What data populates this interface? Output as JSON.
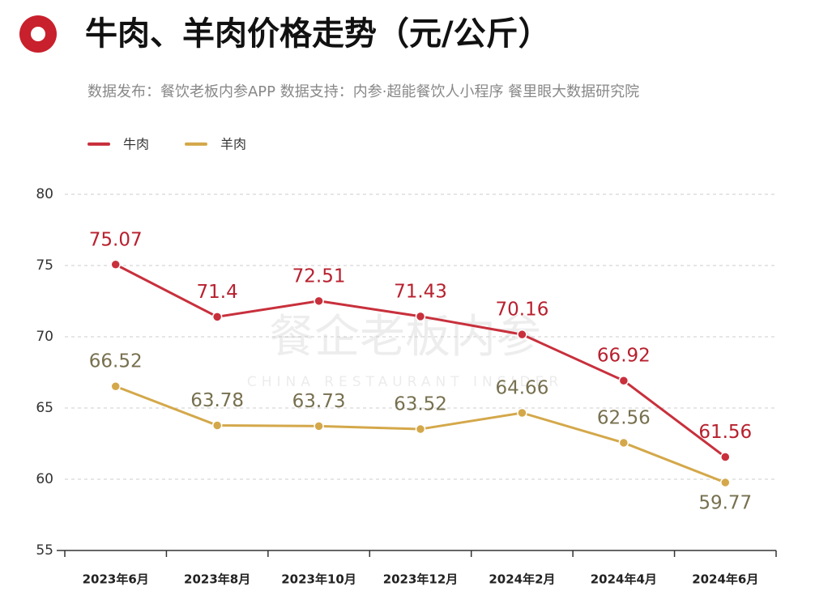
{
  "chart_data": {
    "type": "line",
    "title": "牛肉、羊肉价格走势（元/公斤）",
    "subtitle": "数据发布：餐饮老板内参APP  数据支持：内参·超能餐饮人小程序   餐里眼大数据研究院",
    "watermark": "餐企老板内参",
    "watermark_subtitle": "CHINA RESTAURANT INSIDER",
    "categories": [
      "2023年6月",
      "2023年8月",
      "2023年10月",
      "2023年12月",
      "2024年2月",
      "2024年4月",
      "2024年6月"
    ],
    "series": [
      {
        "name": "牛肉",
        "color": "#c8303c",
        "label_color": "#b8202e",
        "values": [
          75.07,
          71.4,
          72.51,
          71.43,
          70.16,
          66.92,
          61.56
        ]
      },
      {
        "name": "羊肉",
        "color": "#d4a84a",
        "label_color": "#77704f",
        "values": [
          66.52,
          63.78,
          63.73,
          63.52,
          64.66,
          62.56,
          59.77
        ]
      }
    ],
    "ylim": [
      55,
      80
    ],
    "yticks": [
      55,
      60,
      65,
      70,
      75,
      80
    ],
    "grid": true,
    "legend": "top-left"
  }
}
